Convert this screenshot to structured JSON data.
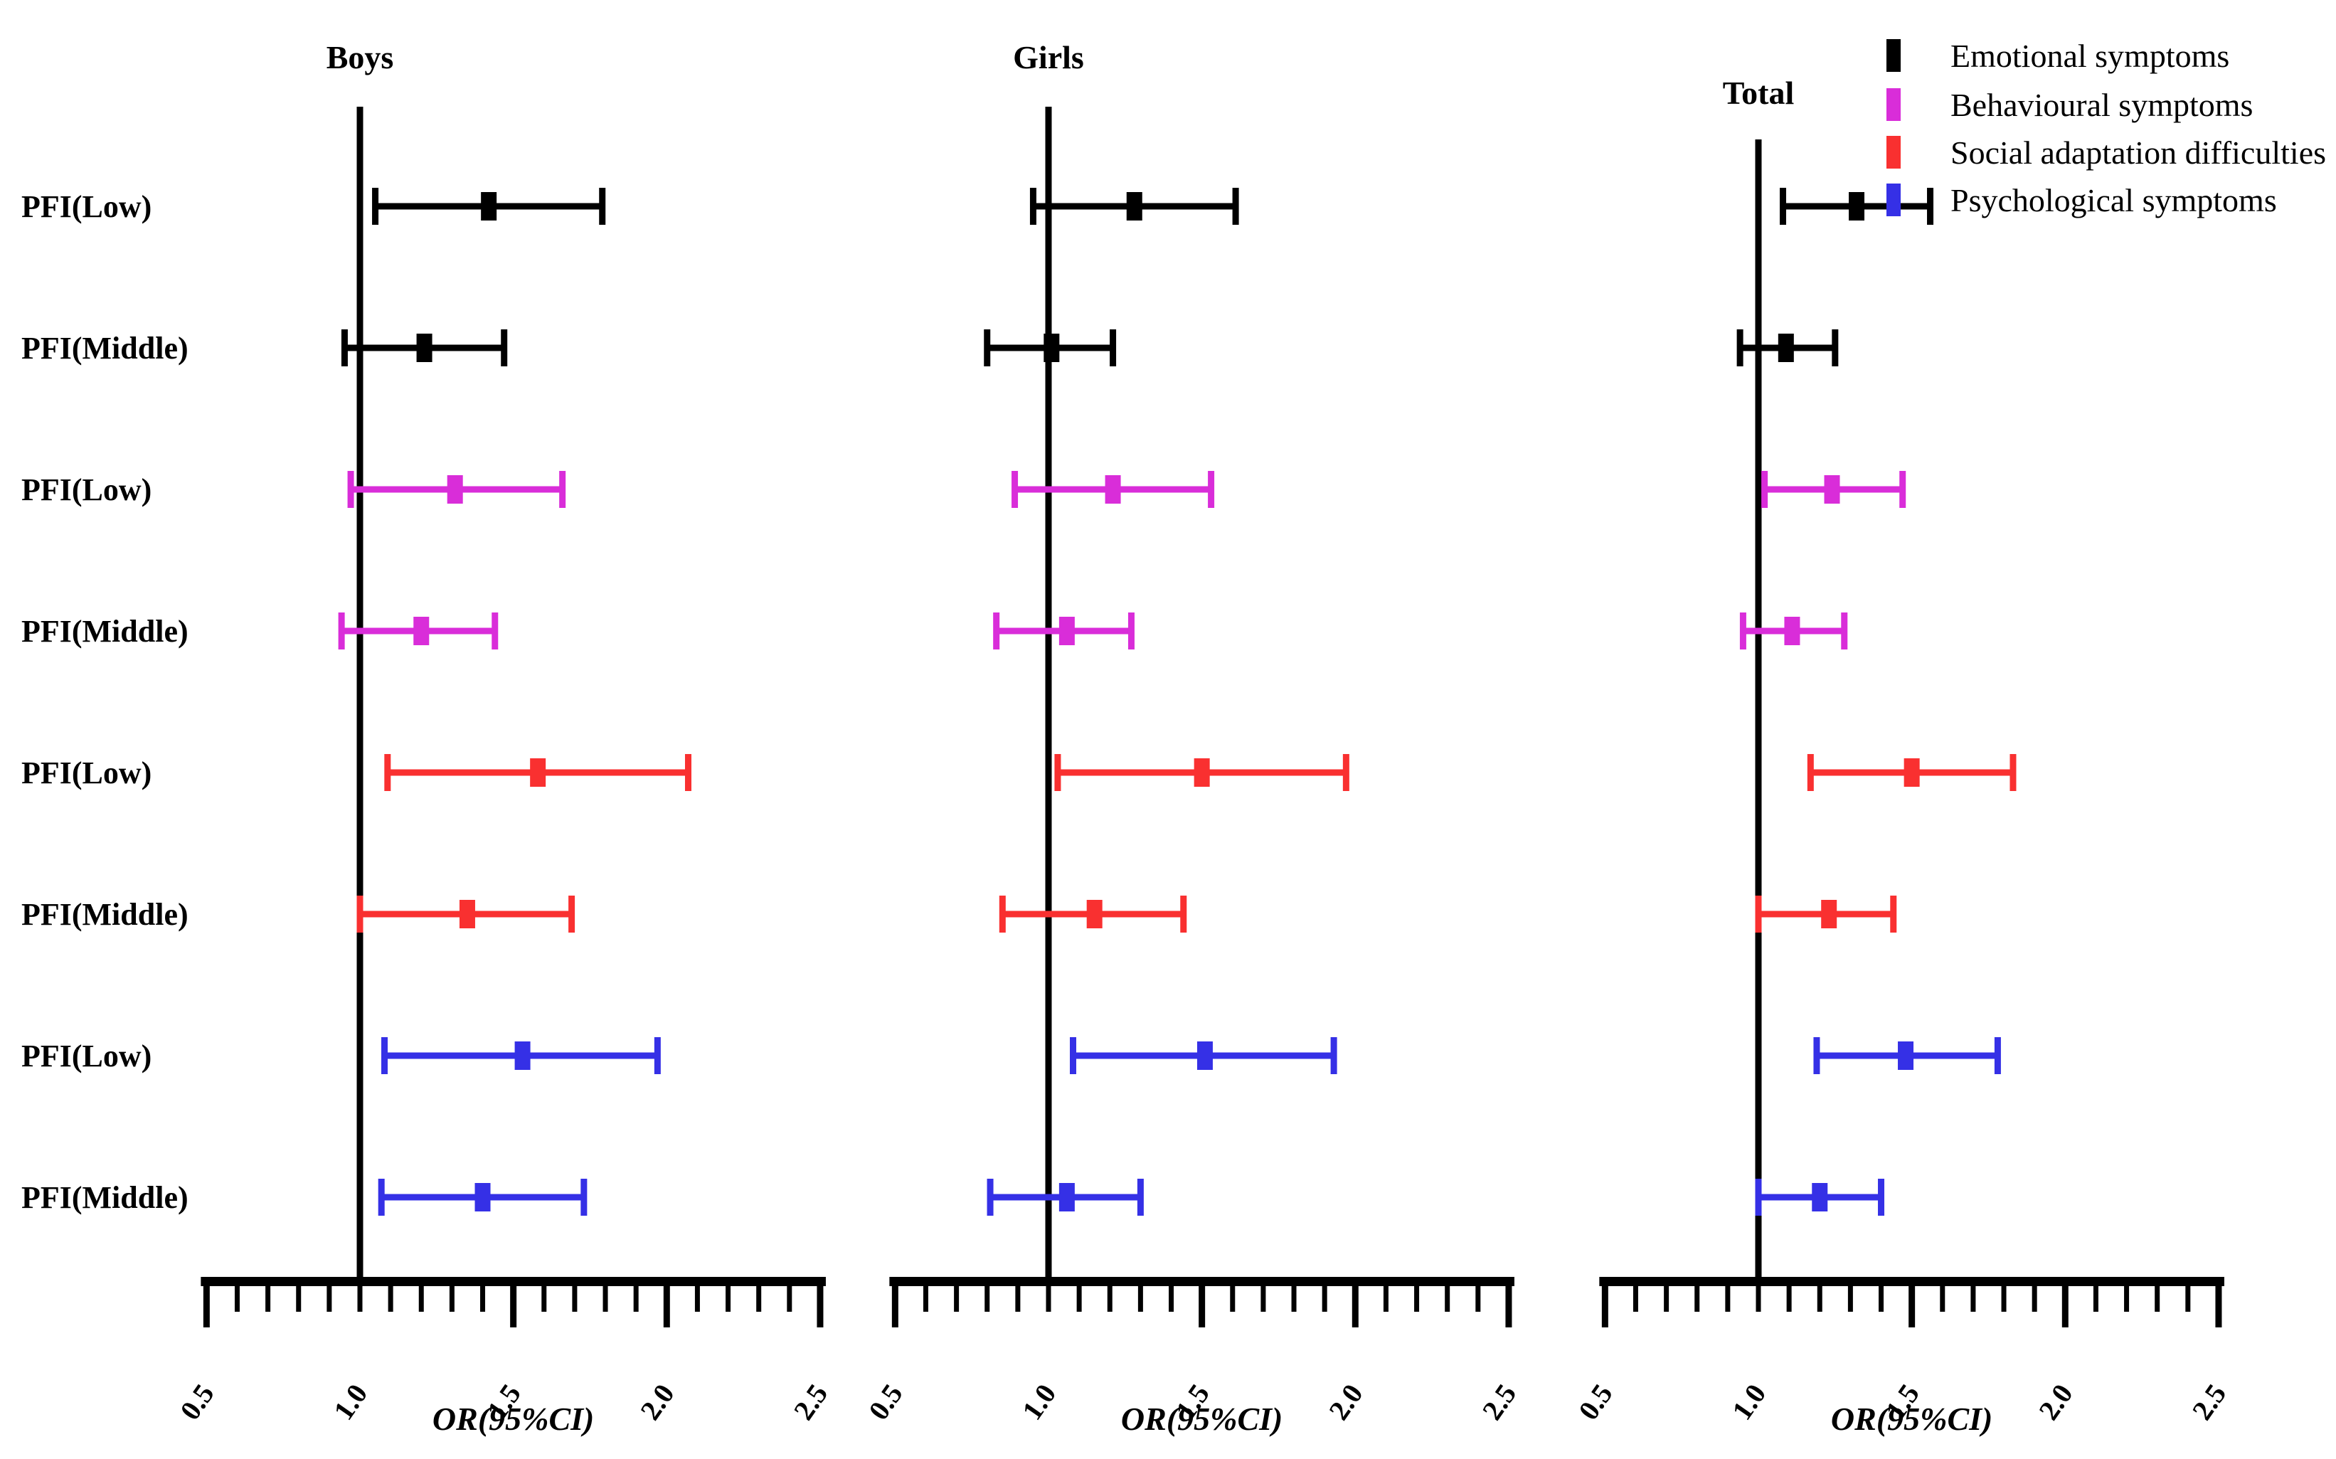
{
  "figure": {
    "xlabel": "OR(95%CI)",
    "xticks": [
      "0.5",
      "1.0",
      "1.5",
      "2.0",
      "2.5"
    ],
    "reference_line_value": 1.0
  },
  "legend": {
    "items": [
      {
        "label": "Emotional symptoms",
        "color": "#000000"
      },
      {
        "label": "Behavioural symptoms",
        "color": "#d92dd9"
      },
      {
        "label": "Social adaptation difficulties",
        "color": "#f93030"
      },
      {
        "label": "Psychological symptoms",
        "color": "#3530e6"
      }
    ]
  },
  "colors": {
    "emotional": "#000000",
    "behavioural": "#d92dd9",
    "social": "#f93030",
    "psychological": "#3530e6",
    "axis": "#000000"
  },
  "chart_data": [
    {
      "type": "scatter",
      "style": "forest-plot",
      "title": "Boys",
      "xlabel": "OR(95%CI)",
      "xlim": [
        0.5,
        2.5
      ],
      "xticks": [
        0.5,
        1.0,
        1.5,
        2.0,
        2.5
      ],
      "minor_tick_step": 0.1,
      "reference_line": 1.0,
      "rows": [
        {
          "label": "PFI(Low)",
          "series": "Emotional symptoms",
          "color_key": "emotional",
          "or": 1.42,
          "ci_low": 1.05,
          "ci_high": 1.79
        },
        {
          "label": "PFI(Middle)",
          "series": "Emotional symptoms",
          "color_key": "emotional",
          "or": 1.21,
          "ci_low": 0.95,
          "ci_high": 1.47
        },
        {
          "label": "PFI(Low)",
          "series": "Behavioural symptoms",
          "color_key": "behavioural",
          "or": 1.31,
          "ci_low": 0.97,
          "ci_high": 1.66
        },
        {
          "label": "PFI(Middle)",
          "series": "Behavioural symptoms",
          "color_key": "behavioural",
          "or": 1.2,
          "ci_low": 0.94,
          "ci_high": 1.44
        },
        {
          "label": "PFI(Low)",
          "series": "Social adaptation difficulties",
          "color_key": "social",
          "or": 1.58,
          "ci_low": 1.09,
          "ci_high": 2.07
        },
        {
          "label": "PFI(Middle)",
          "series": "Social adaptation difficulties",
          "color_key": "social",
          "or": 1.35,
          "ci_low": 1.0,
          "ci_high": 1.69
        },
        {
          "label": "PFI(Low)",
          "series": "Psychological symptoms",
          "color_key": "psychological",
          "or": 1.53,
          "ci_low": 1.08,
          "ci_high": 1.97
        },
        {
          "label": "PFI(Middle)",
          "series": "Psychological symptoms",
          "color_key": "psychological",
          "or": 1.4,
          "ci_low": 1.07,
          "ci_high": 1.73
        }
      ]
    },
    {
      "type": "scatter",
      "style": "forest-plot",
      "title": "Girls",
      "xlabel": "OR(95%CI)",
      "xlim": [
        0.5,
        2.5
      ],
      "xticks": [
        0.5,
        1.0,
        1.5,
        2.0,
        2.5
      ],
      "minor_tick_step": 0.1,
      "reference_line": 1.0,
      "rows": [
        {
          "label": "PFI(Low)",
          "series": "Emotional symptoms",
          "color_key": "emotional",
          "or": 1.28,
          "ci_low": 0.95,
          "ci_high": 1.61
        },
        {
          "label": "PFI(Middle)",
          "series": "Emotional symptoms",
          "color_key": "emotional",
          "or": 1.01,
          "ci_low": 0.8,
          "ci_high": 1.21
        },
        {
          "label": "PFI(Low)",
          "series": "Behavioural symptoms",
          "color_key": "behavioural",
          "or": 1.21,
          "ci_low": 0.89,
          "ci_high": 1.53
        },
        {
          "label": "PFI(Middle)",
          "series": "Behavioural symptoms",
          "color_key": "behavioural",
          "or": 1.06,
          "ci_low": 0.83,
          "ci_high": 1.27
        },
        {
          "label": "PFI(Low)",
          "series": "Social adaptation difficulties",
          "color_key": "social",
          "or": 1.5,
          "ci_low": 1.03,
          "ci_high": 1.97
        },
        {
          "label": "PFI(Middle)",
          "series": "Social adaptation difficulties",
          "color_key": "social",
          "or": 1.15,
          "ci_low": 0.85,
          "ci_high": 1.44
        },
        {
          "label": "PFI(Low)",
          "series": "Psychological symptoms",
          "color_key": "psychological",
          "or": 1.51,
          "ci_low": 1.08,
          "ci_high": 1.93
        },
        {
          "label": "PFI(Middle)",
          "series": "Psychological symptoms",
          "color_key": "psychological",
          "or": 1.06,
          "ci_low": 0.81,
          "ci_high": 1.3
        }
      ]
    },
    {
      "type": "scatter",
      "style": "forest-plot",
      "title": "Total",
      "xlabel": "OR(95%CI)",
      "xlim": [
        0.5,
        2.5
      ],
      "xticks": [
        0.5,
        1.0,
        1.5,
        2.0,
        2.5
      ],
      "minor_tick_step": 0.1,
      "reference_line": 1.0,
      "rows": [
        {
          "label": "PFI(Low)",
          "series": "Emotional symptoms",
          "color_key": "emotional",
          "or": 1.32,
          "ci_low": 1.08,
          "ci_high": 1.56
        },
        {
          "label": "PFI(Middle)",
          "series": "Emotional symptoms",
          "color_key": "emotional",
          "or": 1.09,
          "ci_low": 0.94,
          "ci_high": 1.25
        },
        {
          "label": "PFI(Low)",
          "series": "Behavioural symptoms",
          "color_key": "behavioural",
          "or": 1.24,
          "ci_low": 1.02,
          "ci_high": 1.47
        },
        {
          "label": "PFI(Middle)",
          "series": "Behavioural symptoms",
          "color_key": "behavioural",
          "or": 1.11,
          "ci_low": 0.95,
          "ci_high": 1.28
        },
        {
          "label": "PFI(Low)",
          "series": "Social adaptation difficulties",
          "color_key": "social",
          "or": 1.5,
          "ci_low": 1.17,
          "ci_high": 1.83
        },
        {
          "label": "PFI(Middle)",
          "series": "Social adaptation difficulties",
          "color_key": "social",
          "or": 1.23,
          "ci_low": 1.0,
          "ci_high": 1.44
        },
        {
          "label": "PFI(Low)",
          "series": "Psychological symptoms",
          "color_key": "psychological",
          "or": 1.48,
          "ci_low": 1.19,
          "ci_high": 1.78
        },
        {
          "label": "PFI(Middle)",
          "series": "Psychological symptoms",
          "color_key": "psychological",
          "or": 1.2,
          "ci_low": 1.0,
          "ci_high": 1.4
        }
      ]
    }
  ]
}
